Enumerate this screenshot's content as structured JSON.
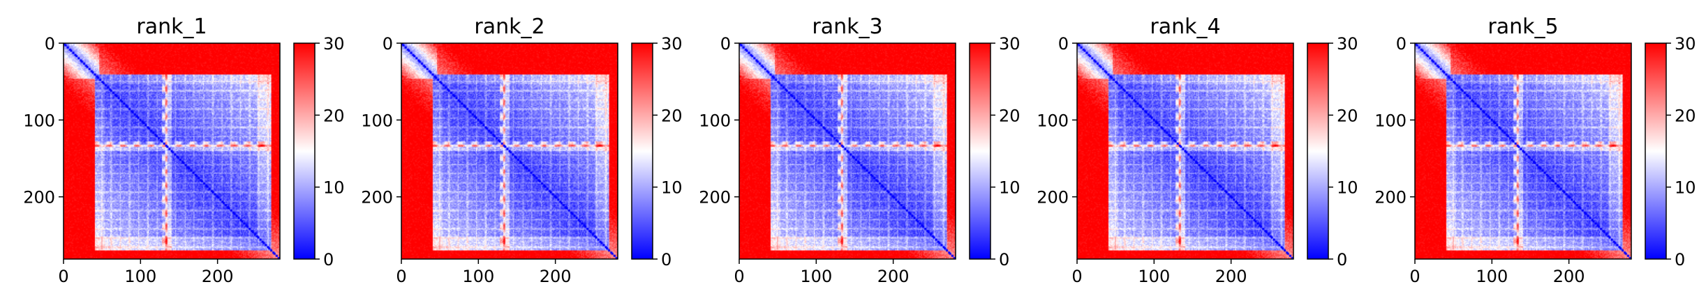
{
  "chart_data": {
    "type": "heatmap",
    "panels": [
      {
        "title": "rank_1"
      },
      {
        "title": "rank_2"
      },
      {
        "title": "rank_3"
      },
      {
        "title": "rank_4"
      },
      {
        "title": "rank_5"
      }
    ],
    "matrix_size": 281,
    "xticks": [
      {
        "value": 0,
        "label": "0"
      },
      {
        "value": 100,
        "label": "100"
      },
      {
        "value": 200,
        "label": "200"
      }
    ],
    "yticks": [
      {
        "value": 0,
        "label": "0"
      },
      {
        "value": 100,
        "label": "100"
      },
      {
        "value": 200,
        "label": "200"
      }
    ],
    "colorbar": {
      "range": [
        0,
        30
      ],
      "ticks": [
        {
          "value": 0,
          "label": "0"
        },
        {
          "value": 10,
          "label": "10"
        },
        {
          "value": 20,
          "label": "20"
        },
        {
          "value": 30,
          "label": "30"
        }
      ],
      "colormap": "bwr",
      "colors": [
        "#0000ff",
        "#ffffff",
        "#ff0000"
      ]
    },
    "grid": false,
    "legend": "none"
  }
}
